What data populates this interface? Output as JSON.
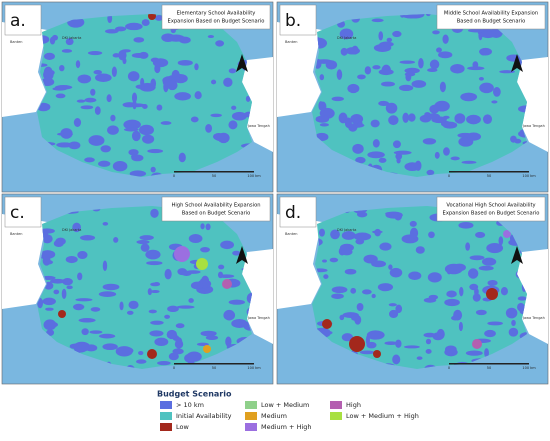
{
  "panels": [
    {
      "label": "a.",
      "title_lines": [
        "Elementary School Availability",
        "Expansion Based on Budget Scenario"
      ]
    },
    {
      "label": "b.",
      "title_lines": [
        "Middle School Availability Expansion",
        "Based on Budget Scenario"
      ]
    },
    {
      "label": "c.",
      "title_lines": [
        "High School Availability Expansion",
        "Based on Budget Scenario"
      ]
    },
    {
      "label": "d.",
      "title_lines": [
        "Vocational High School Availability",
        "Expansion Based on Budget Scenario"
      ]
    }
  ],
  "map_labels": {
    "west": "Banten",
    "capital": "DKI Jakarta",
    "east": "Jawa Tengah",
    "scale": [
      "0",
      "50",
      "100 km"
    ]
  },
  "legend": {
    "title": "Budget Scenario",
    "items": [
      {
        "name": "> 10 km",
        "color": "#5b6ee0"
      },
      {
        "name": "Initial Availability",
        "color": "#4fc2c0"
      },
      {
        "name": "Low",
        "color": "#a3281c"
      },
      {
        "name": "Low + Medium",
        "color": "#8fd08a"
      },
      {
        "name": "Medium",
        "color": "#e0a020"
      },
      {
        "name": "Medium + High",
        "color": "#9b6fe0"
      },
      {
        "name": "High",
        "color": "#b45fb0"
      },
      {
        "name": "Low + Medium + High",
        "color": "#a8e040"
      }
    ]
  }
}
